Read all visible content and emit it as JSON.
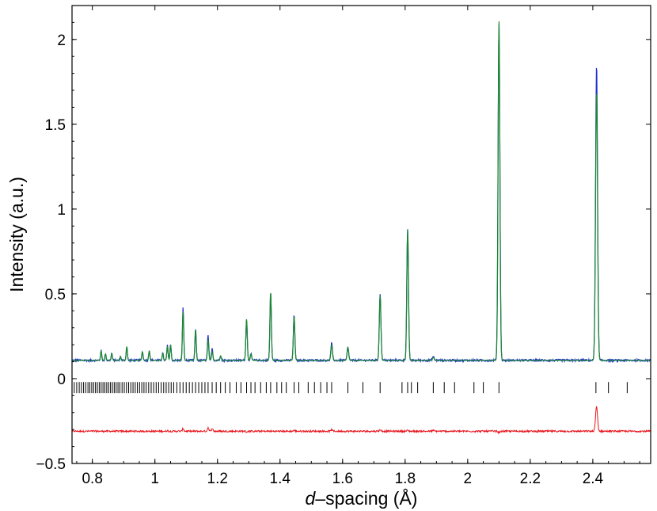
{
  "chart_data": {
    "type": "line",
    "xlabel_italic": "d",
    "xlabel_rest": "–spacing (Å)",
    "ylabel": "Intensity (a.u.)",
    "xlim": [
      0.735,
      2.585
    ],
    "ylim": [
      -0.5,
      2.2
    ],
    "x_ticks": [
      0.8,
      1,
      1.2,
      1.4,
      1.6,
      1.8,
      2,
      2.2,
      2.4
    ],
    "x_tick_labels": [
      "0.8",
      "1",
      "1.2",
      "1.4",
      "1.6",
      "1.8",
      "2",
      "2.2",
      "2.4"
    ],
    "y_ticks": [
      -0.5,
      0,
      0.5,
      1,
      1.5,
      2
    ],
    "y_tick_labels": [
      "−0.5",
      "0",
      "0.5",
      "1",
      "1.5",
      "2"
    ],
    "grid": false,
    "colors": {
      "observed": "#1f2fd0",
      "calculated": "#1a8a2a",
      "difference": "#e8141c",
      "reflections": "#000000"
    },
    "observed_baseline": 0.108,
    "difference_baseline": -0.31,
    "peaks": [
      {
        "d": 0.828,
        "obs": 0.165,
        "calc": 0.165
      },
      {
        "d": 0.842,
        "obs": 0.145,
        "calc": 0.145
      },
      {
        "d": 0.862,
        "obs": 0.15,
        "calc": 0.15
      },
      {
        "d": 0.89,
        "obs": 0.13,
        "calc": 0.13
      },
      {
        "d": 0.91,
        "obs": 0.19,
        "calc": 0.19
      },
      {
        "d": 0.96,
        "obs": 0.16,
        "calc": 0.16
      },
      {
        "d": 0.982,
        "obs": 0.165,
        "calc": 0.165
      },
      {
        "d": 1.025,
        "obs": 0.15,
        "calc": 0.15
      },
      {
        "d": 1.04,
        "obs": 0.195,
        "calc": 0.19
      },
      {
        "d": 1.05,
        "obs": 0.2,
        "calc": 0.2
      },
      {
        "d": 1.09,
        "obs": 0.42,
        "calc": 0.4
      },
      {
        "d": 1.13,
        "obs": 0.29,
        "calc": 0.29
      },
      {
        "d": 1.17,
        "obs": 0.255,
        "calc": 0.23
      },
      {
        "d": 1.183,
        "obs": 0.18,
        "calc": 0.16
      },
      {
        "d": 1.21,
        "obs": 0.135,
        "calc": 0.135
      },
      {
        "d": 1.293,
        "obs": 0.35,
        "calc": 0.355
      },
      {
        "d": 1.307,
        "obs": 0.145,
        "calc": 0.145
      },
      {
        "d": 1.37,
        "obs": 0.51,
        "calc": 0.51
      },
      {
        "d": 1.445,
        "obs": 0.375,
        "calc": 0.37
      },
      {
        "d": 1.565,
        "obs": 0.21,
        "calc": 0.2
      },
      {
        "d": 1.617,
        "obs": 0.185,
        "calc": 0.185
      },
      {
        "d": 1.72,
        "obs": 0.5,
        "calc": 0.49
      },
      {
        "d": 1.808,
        "obs": 0.885,
        "calc": 0.88
      },
      {
        "d": 1.89,
        "obs": 0.13,
        "calc": 0.125
      },
      {
        "d": 2.1,
        "obs": 2.1,
        "calc": 2.11
      },
      {
        "d": 2.412,
        "obs": 1.86,
        "calc": 1.7
      }
    ],
    "reflections": [
      0.742,
      0.75,
      0.758,
      0.765,
      0.772,
      0.779,
      0.786,
      0.792,
      0.798,
      0.804,
      0.81,
      0.816,
      0.822,
      0.828,
      0.834,
      0.84,
      0.846,
      0.852,
      0.858,
      0.864,
      0.87,
      0.876,
      0.882,
      0.888,
      0.895,
      0.902,
      0.909,
      0.916,
      0.923,
      0.93,
      0.937,
      0.944,
      0.951,
      0.958,
      0.965,
      0.972,
      0.98,
      0.988,
      0.996,
      1.004,
      1.012,
      1.02,
      1.028,
      1.036,
      1.044,
      1.052,
      1.06,
      1.07,
      1.08,
      1.09,
      1.1,
      1.11,
      1.12,
      1.13,
      1.14,
      1.15,
      1.16,
      1.17,
      1.183,
      1.196,
      1.21,
      1.225,
      1.24,
      1.26,
      1.275,
      1.293,
      1.307,
      1.32,
      1.338,
      1.356,
      1.37,
      1.39,
      1.405,
      1.42,
      1.445,
      1.46,
      1.49,
      1.51,
      1.53,
      1.55,
      1.565,
      1.617,
      1.665,
      1.72,
      1.79,
      1.808,
      1.82,
      1.84,
      1.89,
      1.925,
      1.958,
      2.02,
      2.05,
      2.1,
      2.41,
      2.45,
      2.51
    ]
  }
}
